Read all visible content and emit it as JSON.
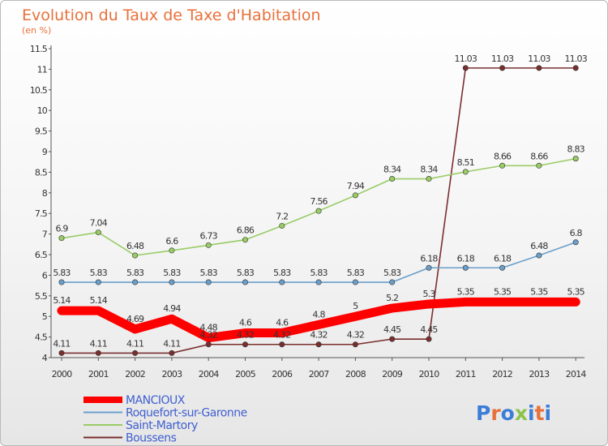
{
  "chart_data": {
    "type": "line",
    "title": "Evolution du Taux de Taxe d'Habitation",
    "subtitle": "(en %)",
    "x": [
      "2000",
      "2001",
      "2002",
      "2003",
      "2004",
      "2005",
      "2006",
      "2007",
      "2008",
      "2009",
      "2010",
      "2011",
      "2012",
      "2013",
      "2014"
    ],
    "yticks": [
      "4",
      "4.5",
      "5",
      "5.5",
      "6",
      "6.5",
      "7",
      "7.5",
      "8",
      "8.5",
      "9",
      "9.5",
      "10",
      "10.5",
      "11",
      "11.5"
    ],
    "ylim": [
      4,
      11.5
    ],
    "grid": false,
    "legend_position": "bottom-left",
    "series": [
      {
        "name": "MANCIOUX",
        "color": "#ff0000",
        "values": [
          5.14,
          5.14,
          4.69,
          4.94,
          4.48,
          4.6,
          4.6,
          4.8,
          5,
          5.2,
          5.3,
          5.35,
          5.35,
          5.35,
          5.35
        ],
        "labels": [
          "5.14",
          "5.14",
          "4.69",
          "4.94",
          "4.48",
          "4.6",
          "4.6",
          "4.8",
          "5",
          "5.2",
          "5.3",
          "5.35",
          "5.35",
          "5.35",
          "5.35"
        ]
      },
      {
        "name": "Roquefort-sur-Garonne",
        "color": "#6a9fcb",
        "values": [
          5.83,
          5.83,
          5.83,
          5.83,
          5.83,
          5.83,
          5.83,
          5.83,
          5.83,
          5.83,
          6.18,
          6.18,
          6.18,
          6.48,
          6.8
        ],
        "labels": [
          "5.83",
          "5.83",
          "5.83",
          "5.83",
          "5.83",
          "5.83",
          "5.83",
          "5.83",
          "5.83",
          "5.83",
          "6.18",
          "6.18",
          "6.18",
          "6.48",
          "6.8"
        ]
      },
      {
        "name": "Saint-Martory",
        "color": "#99cc66",
        "values": [
          6.9,
          7.04,
          6.48,
          6.6,
          6.73,
          6.86,
          7.2,
          7.56,
          7.94,
          8.34,
          8.34,
          8.51,
          8.66,
          8.66,
          8.83
        ],
        "labels": [
          "6.9",
          "7.04",
          "6.48",
          "6.6",
          "6.73",
          "6.86",
          "7.2",
          "7.56",
          "7.94",
          "8.34",
          "8.34",
          "8.51",
          "8.66",
          "8.66",
          "8.83"
        ]
      },
      {
        "name": "Boussens",
        "color": "#7a2e2e",
        "values": [
          4.11,
          4.11,
          4.11,
          4.11,
          4.32,
          4.32,
          4.32,
          4.32,
          4.32,
          4.45,
          4.45,
          11.03,
          11.03,
          11.03,
          11.03
        ],
        "labels": [
          "4.11",
          "4.11",
          "4.11",
          "4.11",
          "4.32",
          "4.32",
          "4.32",
          "4.32",
          "4.32",
          "4.45",
          "4.45",
          "11.03",
          "11.03",
          "11.03",
          "11.03"
        ]
      }
    ]
  },
  "brand": {
    "letters": [
      "P",
      "r",
      "o",
      "x",
      "i",
      "t",
      "i"
    ],
    "colors": [
      "#3b7dd8",
      "#e8703a",
      "#3b7dd8",
      "#8bc34a",
      "#3b7dd8",
      "#e8703a",
      "#3b7dd8"
    ]
  }
}
